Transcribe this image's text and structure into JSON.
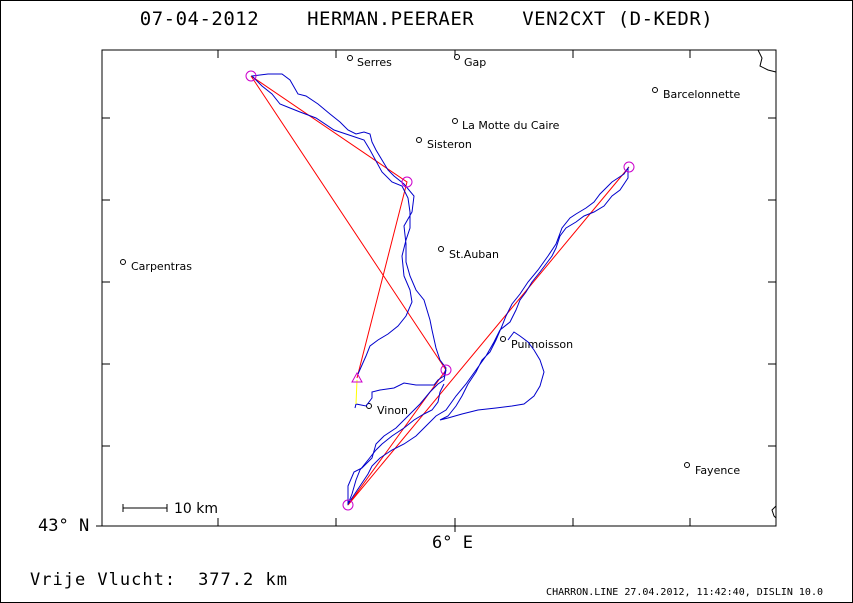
{
  "header": {
    "date": "07-04-2012",
    "pilot": "HERMAN.PEERAER",
    "glider": "VEN2CXT (D-KEDR)"
  },
  "axes": {
    "lat_label": "43° N",
    "lon_label": "6° E"
  },
  "scale": {
    "label": "10 km"
  },
  "places": [
    {
      "name": "Serres"
    },
    {
      "name": "Gap"
    },
    {
      "name": "Barcelonnette"
    },
    {
      "name": "La Motte du Caire"
    },
    {
      "name": "Sisteron"
    },
    {
      "name": "St.Auban"
    },
    {
      "name": "Carpentras"
    },
    {
      "name": "Puimoisson"
    },
    {
      "name": "Vinon"
    },
    {
      "name": "Fayence"
    }
  ],
  "colors": {
    "track": "#0000cc",
    "task": "#ff0000",
    "turnpoint": "#cc00cc",
    "start": "#ffff00"
  },
  "footer": {
    "distance_label": "Vrije Vlucht:",
    "distance_value": "377.2 km",
    "software": "CHARRON.LINE 27.04.2012, 11:42:40, DISLIN 10.0"
  }
}
